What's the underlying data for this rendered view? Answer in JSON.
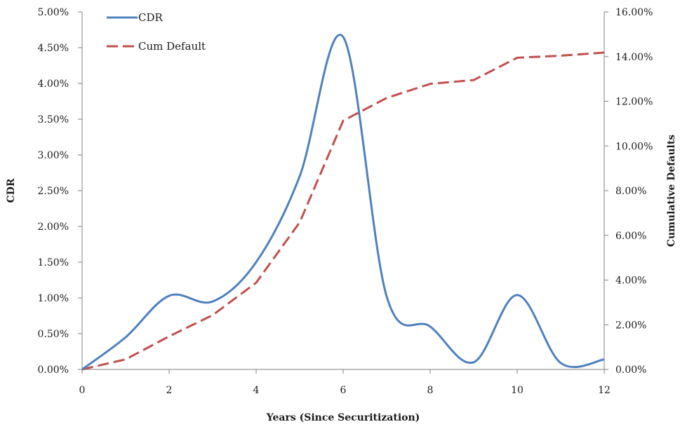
{
  "chart_data": {
    "type": "line",
    "title": "",
    "xlabel": "Years (Since Securitization)",
    "ylabel_left": "CDR",
    "ylabel_right": "Cumulative Defaults",
    "xlim": [
      0,
      12
    ],
    "ylim_left": [
      0,
      0.05
    ],
    "ylim_right": [
      0,
      0.16
    ],
    "x_ticks": [
      "0",
      "2",
      "4",
      "6",
      "8",
      "10",
      "12"
    ],
    "y_left_ticks": [
      "0.00%",
      "0.50%",
      "1.00%",
      "1.50%",
      "2.00%",
      "2.50%",
      "3.00%",
      "3.50%",
      "4.00%",
      "4.50%",
      "5.00%"
    ],
    "y_right_ticks": [
      "0.00%",
      "2.00%",
      "4.00%",
      "6.00%",
      "8.00%",
      "10.00%",
      "12.00%",
      "14.00%",
      "16.00%"
    ],
    "grid": false,
    "legend_position": "top-left",
    "series": [
      {
        "name": "CDR",
        "axis": "left",
        "color": "#4f81bd",
        "style": "solid",
        "smooth": true,
        "x": [
          0,
          1,
          2,
          3,
          4,
          5,
          6,
          7,
          8,
          9,
          10,
          11,
          12
        ],
        "y": [
          0.0,
          0.0045,
          0.0103,
          0.0095,
          0.015,
          0.027,
          0.0465,
          0.0102,
          0.006,
          0.001,
          0.0104,
          0.0009,
          0.0014
        ]
      },
      {
        "name": "Cum Default",
        "axis": "right",
        "color": "#c0504d",
        "style": "dashed",
        "smooth": false,
        "x": [
          0,
          1,
          2,
          3,
          4,
          5,
          6,
          7,
          8,
          9,
          10,
          11,
          12
        ],
        "y": [
          0.0,
          0.0045,
          0.0148,
          0.0243,
          0.0388,
          0.0658,
          0.1113,
          0.1215,
          0.1278,
          0.1295,
          0.1395,
          0.1404,
          0.1418
        ]
      }
    ]
  }
}
